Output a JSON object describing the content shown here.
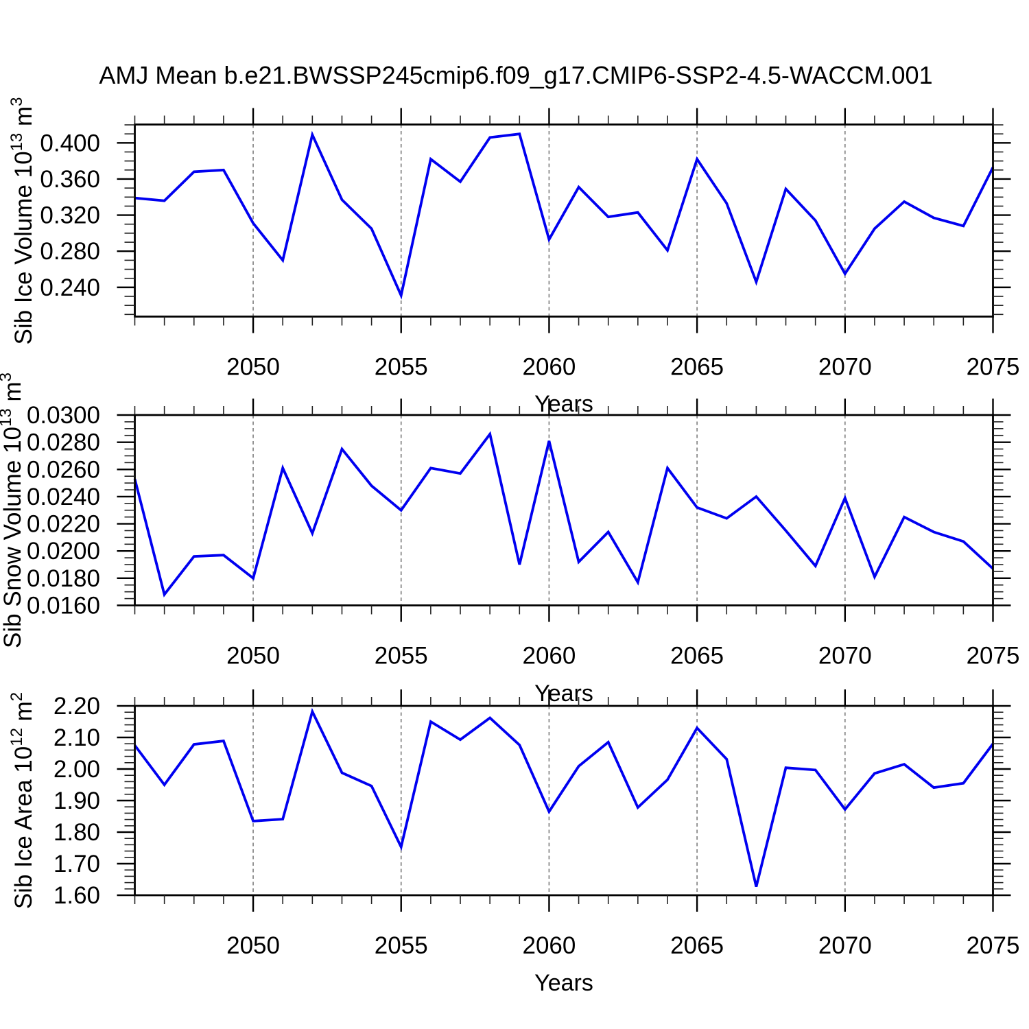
{
  "title": "AMJ Mean b.e21.BWSSP245cmip6.f09_g17.CMIP6-SSP2-4.5-WACCM.001",
  "colors": {
    "line": "#0000f0",
    "axis": "#000000",
    "gridline": "#8a8a8a",
    "minor_tick": "#222222",
    "background": "#ffffff",
    "text": "#000000"
  },
  "x_axis": {
    "label": "Years",
    "years": [
      2046,
      2047,
      2048,
      2049,
      2050,
      2051,
      2052,
      2053,
      2054,
      2055,
      2056,
      2057,
      2058,
      2059,
      2060,
      2061,
      2062,
      2063,
      2064,
      2065,
      2066,
      2067,
      2068,
      2069,
      2070,
      2071,
      2072,
      2073,
      2074,
      2075
    ],
    "major_tick_years": [
      2050,
      2055,
      2060,
      2065,
      2070,
      2075
    ],
    "major_tick_labels": [
      "2050",
      "2055",
      "2060",
      "2065",
      "2070",
      "2075"
    ],
    "gridline_years": [
      2050,
      2055,
      2060,
      2065,
      2070
    ]
  },
  "chart_data": [
    {
      "type": "line",
      "name": "sib-ice-volume",
      "ylabel": {
        "base": "Sib Ice Volume 10",
        "exp": "13",
        "unit": " m",
        "unit_exp": "3"
      },
      "ylim": [
        0.2076,
        0.4204
      ],
      "ytick_values": [
        0.4,
        0.36,
        0.32,
        0.28,
        0.24
      ],
      "ytick_labels": [
        "0.400",
        "0.360",
        "0.320",
        "0.280",
        "0.240"
      ],
      "yminor": {
        "start": 0.21,
        "end": 0.42,
        "step": 0.01
      },
      "xlabel": "Years",
      "values": [
        0.339,
        0.336,
        0.368,
        0.37,
        0.311,
        0.27,
        0.409,
        0.337,
        0.305,
        0.231,
        0.382,
        0.357,
        0.406,
        0.41,
        0.293,
        0.351,
        0.318,
        0.323,
        0.281,
        0.382,
        0.333,
        0.246,
        0.349,
        0.314,
        0.255,
        0.305,
        0.335,
        0.317,
        0.308,
        0.373
      ]
    },
    {
      "type": "line",
      "name": "sib-snow-volume",
      "ylabel": {
        "base": "Sib Snow Volume 10",
        "exp": "13",
        "unit": " m",
        "unit_exp": "3"
      },
      "ylim": [
        0.016,
        0.03
      ],
      "ytick_values": [
        0.03,
        0.028,
        0.026,
        0.024,
        0.022,
        0.02,
        0.018,
        0.016
      ],
      "ytick_labels": [
        "0.0300",
        "0.0280",
        "0.0260",
        "0.0240",
        "0.0220",
        "0.0200",
        "0.0180",
        "0.0160"
      ],
      "yminor": {
        "start": 0.016,
        "end": 0.03,
        "step": 0.0005
      },
      "xlabel": "Years",
      "values": [
        0.0253,
        0.0168,
        0.0196,
        0.0197,
        0.018,
        0.0261,
        0.0213,
        0.0275,
        0.0248,
        0.023,
        0.0261,
        0.0257,
        0.0286,
        0.019,
        0.0281,
        0.0192,
        0.0214,
        0.0177,
        0.0261,
        0.0232,
        0.0224,
        0.024,
        0.0215,
        0.0189,
        0.0239,
        0.0181,
        0.0225,
        0.0214,
        0.0207,
        0.0187
      ]
    },
    {
      "type": "line",
      "name": "sib-ice-area",
      "ylabel": {
        "base": "Sib Ice Area 10",
        "exp": "12",
        "unit": " m",
        "unit_exp": "2"
      },
      "ylim": [
        1.6,
        2.2
      ],
      "ytick_values": [
        2.2,
        2.1,
        2.0,
        1.9,
        1.8,
        1.7,
        1.6
      ],
      "ytick_labels": [
        "2.20",
        "2.10",
        "2.00",
        "1.90",
        "1.80",
        "1.70",
        "1.60"
      ],
      "yminor": {
        "start": 1.6,
        "end": 2.2,
        "step": 0.02
      },
      "xlabel": "Years",
      "values": [
        2.075,
        1.95,
        2.078,
        2.089,
        1.835,
        1.841,
        2.182,
        1.988,
        1.946,
        1.753,
        2.15,
        2.093,
        2.162,
        2.076,
        1.865,
        2.009,
        2.085,
        1.878,
        1.966,
        2.13,
        2.031,
        1.627,
        2.004,
        1.997,
        1.872,
        1.986,
        2.015,
        1.941,
        1.955,
        2.08
      ]
    }
  ]
}
